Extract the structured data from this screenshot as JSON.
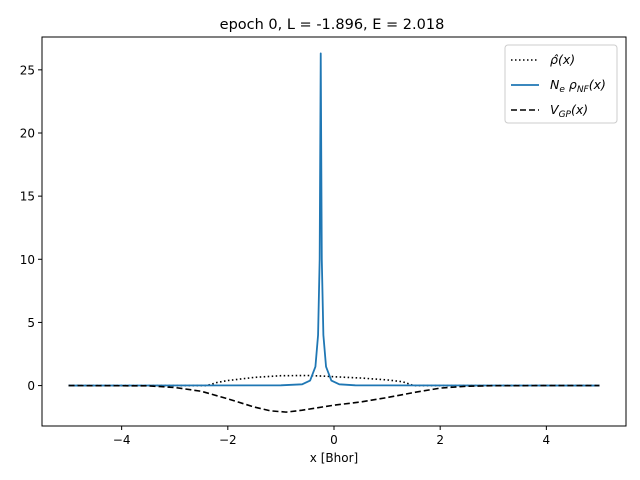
{
  "chart_data": {
    "type": "line",
    "title": "epoch 0, L = -1.896, E = 2.018",
    "xlabel": "x [Bhor]",
    "ylabel": "",
    "xlim": [
      -5.5,
      5.5
    ],
    "ylim": [
      -3.2,
      27.6
    ],
    "xticks": [
      -4,
      -2,
      0,
      2,
      4
    ],
    "xtick_labels": [
      "−4",
      "−2",
      "0",
      "2",
      "4"
    ],
    "yticks": [
      0,
      5,
      10,
      15,
      20,
      25
    ],
    "ytick_labels": [
      "0",
      "5",
      "10",
      "15",
      "20",
      "25"
    ],
    "grid": false,
    "legend_position": "top-right",
    "series": [
      {
        "name": "ρ̂(x)",
        "style": "dotted",
        "color": "#000000",
        "x": [
          -5,
          -3,
          -2.4,
          -2.2,
          -2.0,
          -1.5,
          -1.0,
          -0.5,
          -0.2,
          0.0,
          0.5,
          1.0,
          1.3,
          1.5,
          2.0,
          5
        ],
        "y": [
          0,
          0,
          0.0,
          0.25,
          0.4,
          0.65,
          0.78,
          0.8,
          0.75,
          0.7,
          0.6,
          0.45,
          0.3,
          0.0,
          0,
          0
        ]
      },
      {
        "name": "N_e ρ_NF(x)",
        "style": "solid",
        "color": "#1f77b4",
        "x": [
          -5,
          -1.0,
          -0.6,
          -0.45,
          -0.35,
          -0.3,
          -0.27,
          -0.25,
          -0.23,
          -0.2,
          -0.15,
          -0.05,
          0.1,
          0.4,
          5
        ],
        "y": [
          0,
          0.02,
          0.1,
          0.4,
          1.5,
          4.0,
          10.0,
          26.3,
          10.0,
          4.0,
          1.5,
          0.4,
          0.1,
          0.02,
          0
        ]
      },
      {
        "name": "V_GP(x)",
        "style": "dashed",
        "color": "#000000",
        "x": [
          -5,
          -3.5,
          -3.0,
          -2.5,
          -2.0,
          -1.5,
          -1.2,
          -0.9,
          -0.6,
          -0.3,
          0.0,
          0.5,
          1.0,
          1.5,
          2.0,
          2.5,
          3.0,
          4.0,
          5.0
        ],
        "y": [
          0,
          -0.02,
          -0.15,
          -0.45,
          -1.05,
          -1.7,
          -2.0,
          -2.1,
          -1.95,
          -1.75,
          -1.55,
          -1.3,
          -0.95,
          -0.55,
          -0.2,
          -0.05,
          -0.01,
          0,
          0
        ]
      }
    ]
  },
  "legend": {
    "entries": [
      {
        "main": "ρ̂",
        "sub": "",
        "tail": "(x)"
      },
      {
        "main": "N",
        "sub": "e",
        "mid": " ρ",
        "sub2": "NF",
        "tail": "(x)"
      },
      {
        "main": "V",
        "sub": "GP",
        "tail": "(x)"
      }
    ]
  }
}
